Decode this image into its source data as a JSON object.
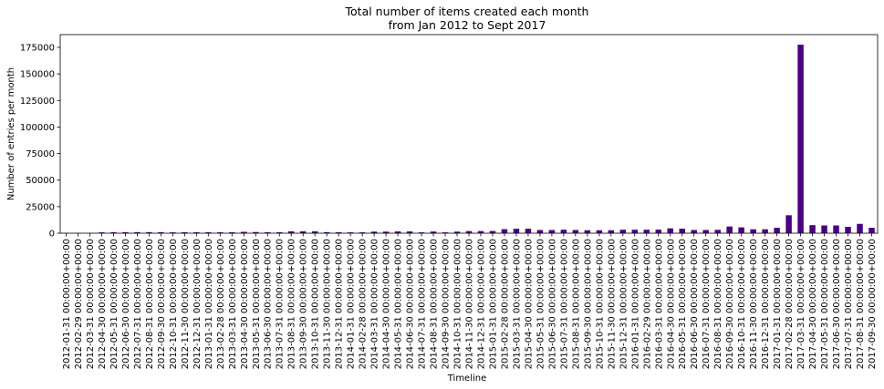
{
  "chart_data": {
    "type": "bar",
    "title": "Total number of items created each month",
    "subtitle": "from Jan 2012 to Sept 2017",
    "xlabel": "Timeline",
    "ylabel": "Number of entries per month",
    "ylim": [
      0,
      187000
    ],
    "yticks": [
      0,
      25000,
      50000,
      75000,
      100000,
      125000,
      150000,
      175000
    ],
    "bar_color": "#4b0082",
    "grid": false,
    "categories": [
      "2012-01-31 00:00:00+00:00",
      "2012-02-29 00:00:00+00:00",
      "2012-03-31 00:00:00+00:00",
      "2012-04-30 00:00:00+00:00",
      "2012-05-31 00:00:00+00:00",
      "2012-06-30 00:00:00+00:00",
      "2012-07-31 00:00:00+00:00",
      "2012-08-31 00:00:00+00:00",
      "2012-09-30 00:00:00+00:00",
      "2012-10-31 00:00:00+00:00",
      "2012-11-30 00:00:00+00:00",
      "2012-12-31 00:00:00+00:00",
      "2013-01-31 00:00:00+00:00",
      "2013-02-28 00:00:00+00:00",
      "2013-03-31 00:00:00+00:00",
      "2013-04-30 00:00:00+00:00",
      "2013-05-31 00:00:00+00:00",
      "2013-06-30 00:00:00+00:00",
      "2013-07-31 00:00:00+00:00",
      "2013-08-31 00:00:00+00:00",
      "2013-09-30 00:00:00+00:00",
      "2013-10-31 00:00:00+00:00",
      "2013-11-30 00:00:00+00:00",
      "2013-12-31 00:00:00+00:00",
      "2014-01-31 00:00:00+00:00",
      "2014-02-28 00:00:00+00:00",
      "2014-03-31 00:00:00+00:00",
      "2014-04-30 00:00:00+00:00",
      "2014-05-31 00:00:00+00:00",
      "2014-06-30 00:00:00+00:00",
      "2014-07-31 00:00:00+00:00",
      "2014-08-31 00:00:00+00:00",
      "2014-09-30 00:00:00+00:00",
      "2014-10-31 00:00:00+00:00",
      "2014-11-30 00:00:00+00:00",
      "2014-12-31 00:00:00+00:00",
      "2015-01-31 00:00:00+00:00",
      "2015-02-28 00:00:00+00:00",
      "2015-03-31 00:00:00+00:00",
      "2015-04-30 00:00:00+00:00",
      "2015-05-31 00:00:00+00:00",
      "2015-06-30 00:00:00+00:00",
      "2015-07-31 00:00:00+00:00",
      "2015-08-31 00:00:00+00:00",
      "2015-09-30 00:00:00+00:00",
      "2015-10-31 00:00:00+00:00",
      "2015-11-30 00:00:00+00:00",
      "2015-12-31 00:00:00+00:00",
      "2016-01-31 00:00:00+00:00",
      "2016-02-29 00:00:00+00:00",
      "2016-03-31 00:00:00+00:00",
      "2016-04-30 00:00:00+00:00",
      "2016-05-31 00:00:00+00:00",
      "2016-06-30 00:00:00+00:00",
      "2016-07-31 00:00:00+00:00",
      "2016-08-31 00:00:00+00:00",
      "2016-09-30 00:00:00+00:00",
      "2016-10-31 00:00:00+00:00",
      "2016-11-30 00:00:00+00:00",
      "2016-12-31 00:00:00+00:00",
      "2017-01-31 00:00:00+00:00",
      "2017-02-28 00:00:00+00:00",
      "2017-03-31 00:00:00+00:00",
      "2017-04-30 00:00:00+00:00",
      "2017-05-31 00:00:00+00:00",
      "2017-06-30 00:00:00+00:00",
      "2017-07-31 00:00:00+00:00",
      "2017-08-31 00:00:00+00:00",
      "2017-09-30 00:00:00+00:00"
    ],
    "values": [
      200,
      150,
      300,
      800,
      900,
      900,
      1000,
      1000,
      1000,
      800,
      900,
      900,
      900,
      900,
      900,
      1300,
      1100,
      900,
      900,
      1800,
      1800,
      1800,
      1000,
      900,
      800,
      800,
      1500,
      1500,
      1700,
      1700,
      800,
      1600,
      800,
      1500,
      2000,
      2000,
      2100,
      3800,
      4200,
      4200,
      3000,
      3000,
      3300,
      3000,
      2800,
      2800,
      2800,
      3300,
      3300,
      3300,
      3400,
      4600,
      4300,
      3000,
      3000,
      3200,
      6300,
      5500,
      3700,
      3700,
      5100,
      16900,
      177500,
      7600,
      7300,
      7300,
      6000,
      8800,
      5100
    ]
  }
}
